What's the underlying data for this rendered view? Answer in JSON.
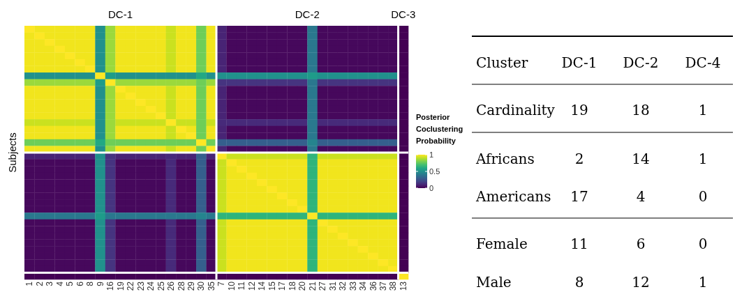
{
  "chart_data": [
    {
      "type": "heatmap",
      "ylabel": "Subjects",
      "categories": [
        "1",
        "2",
        "3",
        "4",
        "5",
        "6",
        "8",
        "9",
        "16",
        "19",
        "22",
        "23",
        "24",
        "25",
        "26",
        "28",
        "29",
        "30",
        "35",
        "7",
        "10",
        "11",
        "12",
        "14",
        "15",
        "17",
        "18",
        "20",
        "21",
        "27",
        "31",
        "32",
        "33",
        "34",
        "36",
        "37",
        "38",
        "13"
      ],
      "y_categories": [
        null,
        null,
        null,
        null,
        null,
        null,
        null,
        null,
        null,
        null,
        null,
        null,
        null,
        null,
        null,
        null,
        null,
        null,
        null,
        null,
        null,
        null,
        null,
        null,
        null,
        null,
        null,
        null,
        null,
        null,
        null,
        null,
        null,
        null,
        null,
        null,
        null,
        null
      ],
      "annotations": [
        "DC-1",
        "DC-2",
        "DC-3"
      ],
      "clim": [
        0,
        1
      ],
      "cticks": [
        0,
        0.5,
        1
      ],
      "clabel": "Posterior Coclustering Probability",
      "tick_labels": "x",
      "cells": [
        [
          1,
          0.98,
          0.98,
          0.98,
          0.98,
          0.98,
          0.98,
          0.5,
          0.85,
          0.98,
          0.98,
          0.98,
          0.98,
          0.98,
          0.92,
          0.98,
          0.98,
          0.78,
          0.98,
          0.1,
          0.02,
          0.02,
          0.02,
          0.02,
          0.02,
          0.02,
          0.02,
          0.02,
          0.4,
          0.02,
          0.02,
          0.02,
          0.02,
          0.02,
          0.02,
          0.02,
          0.02,
          0
        ],
        [
          0.98,
          1,
          0.98,
          0.98,
          0.98,
          0.98,
          0.98,
          0.5,
          0.85,
          0.98,
          0.98,
          0.98,
          0.98,
          0.98,
          0.92,
          0.98,
          0.98,
          0.78,
          0.98,
          0.1,
          0.02,
          0.02,
          0.02,
          0.02,
          0.02,
          0.02,
          0.02,
          0.02,
          0.4,
          0.02,
          0.02,
          0.02,
          0.02,
          0.02,
          0.02,
          0.02,
          0.02,
          0
        ],
        [
          0.98,
          0.98,
          1,
          0.98,
          0.98,
          0.98,
          0.98,
          0.5,
          0.85,
          0.98,
          0.98,
          0.98,
          0.98,
          0.98,
          0.92,
          0.98,
          0.98,
          0.78,
          0.98,
          0.1,
          0.02,
          0.02,
          0.02,
          0.02,
          0.02,
          0.02,
          0.02,
          0.02,
          0.4,
          0.02,
          0.02,
          0.02,
          0.02,
          0.02,
          0.02,
          0.02,
          0.02,
          0
        ],
        [
          0.98,
          0.98,
          0.98,
          1,
          0.98,
          0.98,
          0.98,
          0.5,
          0.85,
          0.98,
          0.98,
          0.98,
          0.98,
          0.98,
          0.92,
          0.98,
          0.98,
          0.78,
          0.98,
          0.1,
          0.02,
          0.02,
          0.02,
          0.02,
          0.02,
          0.02,
          0.02,
          0.02,
          0.4,
          0.02,
          0.02,
          0.02,
          0.02,
          0.02,
          0.02,
          0.02,
          0.02,
          0
        ],
        [
          0.98,
          0.98,
          0.98,
          0.98,
          1,
          0.98,
          0.98,
          0.5,
          0.85,
          0.98,
          0.98,
          0.98,
          0.98,
          0.98,
          0.92,
          0.98,
          0.98,
          0.78,
          0.98,
          0.1,
          0.02,
          0.02,
          0.02,
          0.02,
          0.02,
          0.02,
          0.02,
          0.02,
          0.4,
          0.02,
          0.02,
          0.02,
          0.02,
          0.02,
          0.02,
          0.02,
          0.02,
          0
        ],
        [
          0.98,
          0.98,
          0.98,
          0.98,
          0.98,
          1,
          0.98,
          0.5,
          0.85,
          0.98,
          0.98,
          0.98,
          0.98,
          0.98,
          0.92,
          0.98,
          0.98,
          0.78,
          0.98,
          0.1,
          0.02,
          0.02,
          0.02,
          0.02,
          0.02,
          0.02,
          0.02,
          0.02,
          0.4,
          0.02,
          0.02,
          0.02,
          0.02,
          0.02,
          0.02,
          0.02,
          0.02,
          0
        ],
        [
          0.98,
          0.98,
          0.98,
          0.98,
          0.98,
          0.98,
          1,
          0.5,
          0.85,
          0.98,
          0.98,
          0.98,
          0.98,
          0.98,
          0.92,
          0.98,
          0.98,
          0.78,
          0.98,
          0.1,
          0.02,
          0.02,
          0.02,
          0.02,
          0.02,
          0.02,
          0.02,
          0.02,
          0.4,
          0.02,
          0.02,
          0.02,
          0.02,
          0.02,
          0.02,
          0.02,
          0.02,
          0
        ],
        [
          0.5,
          0.5,
          0.5,
          0.5,
          0.5,
          0.5,
          0.5,
          1,
          0.55,
          0.5,
          0.5,
          0.5,
          0.5,
          0.5,
          0.5,
          0.5,
          0.5,
          0.6,
          0.5,
          0.5,
          0.5,
          0.5,
          0.5,
          0.5,
          0.5,
          0.5,
          0.5,
          0.5,
          0.55,
          0.5,
          0.5,
          0.5,
          0.5,
          0.5,
          0.5,
          0.5,
          0.5,
          0
        ],
        [
          0.85,
          0.85,
          0.85,
          0.85,
          0.85,
          0.85,
          0.85,
          0.55,
          1,
          0.85,
          0.85,
          0.85,
          0.85,
          0.85,
          0.85,
          0.85,
          0.85,
          0.78,
          0.85,
          0.15,
          0.15,
          0.15,
          0.15,
          0.15,
          0.15,
          0.15,
          0.15,
          0.15,
          0.4,
          0.15,
          0.15,
          0.15,
          0.15,
          0.15,
          0.15,
          0.15,
          0.15,
          0
        ],
        [
          0.98,
          0.98,
          0.98,
          0.98,
          0.98,
          0.98,
          0.98,
          0.5,
          0.85,
          1,
          0.98,
          0.98,
          0.98,
          0.98,
          0.92,
          0.98,
          0.98,
          0.78,
          0.98,
          0.1,
          0.02,
          0.02,
          0.02,
          0.02,
          0.02,
          0.02,
          0.02,
          0.02,
          0.4,
          0.02,
          0.02,
          0.02,
          0.02,
          0.02,
          0.02,
          0.02,
          0.02,
          0
        ],
        [
          0.98,
          0.98,
          0.98,
          0.98,
          0.98,
          0.98,
          0.98,
          0.5,
          0.85,
          0.98,
          1,
          0.98,
          0.98,
          0.98,
          0.92,
          0.98,
          0.98,
          0.78,
          0.98,
          0.1,
          0.02,
          0.02,
          0.02,
          0.02,
          0.02,
          0.02,
          0.02,
          0.02,
          0.4,
          0.02,
          0.02,
          0.02,
          0.02,
          0.02,
          0.02,
          0.02,
          0.02,
          0
        ],
        [
          0.98,
          0.98,
          0.98,
          0.98,
          0.98,
          0.98,
          0.98,
          0.5,
          0.85,
          0.98,
          0.98,
          1,
          0.98,
          0.98,
          0.92,
          0.98,
          0.98,
          0.78,
          0.98,
          0.1,
          0.02,
          0.02,
          0.02,
          0.02,
          0.02,
          0.02,
          0.02,
          0.02,
          0.4,
          0.02,
          0.02,
          0.02,
          0.02,
          0.02,
          0.02,
          0.02,
          0.02,
          0
        ],
        [
          0.98,
          0.98,
          0.98,
          0.98,
          0.98,
          0.98,
          0.98,
          0.5,
          0.85,
          0.98,
          0.98,
          0.98,
          1,
          0.98,
          0.92,
          0.98,
          0.98,
          0.78,
          0.98,
          0.1,
          0.02,
          0.02,
          0.02,
          0.02,
          0.02,
          0.02,
          0.02,
          0.02,
          0.4,
          0.02,
          0.02,
          0.02,
          0.02,
          0.02,
          0.02,
          0.02,
          0.02,
          0
        ],
        [
          0.98,
          0.98,
          0.98,
          0.98,
          0.98,
          0.98,
          0.98,
          0.5,
          0.85,
          0.98,
          0.98,
          0.98,
          0.98,
          1,
          0.92,
          0.98,
          0.98,
          0.78,
          0.98,
          0.1,
          0.02,
          0.02,
          0.02,
          0.02,
          0.02,
          0.02,
          0.02,
          0.02,
          0.4,
          0.02,
          0.02,
          0.02,
          0.02,
          0.02,
          0.02,
          0.02,
          0.02,
          0
        ],
        [
          0.92,
          0.92,
          0.92,
          0.92,
          0.92,
          0.92,
          0.92,
          0.5,
          0.85,
          0.92,
          0.92,
          0.92,
          0.92,
          0.92,
          1,
          0.92,
          0.92,
          0.78,
          0.92,
          0.12,
          0.12,
          0.12,
          0.12,
          0.12,
          0.12,
          0.12,
          0.12,
          0.12,
          0.4,
          0.12,
          0.12,
          0.12,
          0.12,
          0.12,
          0.12,
          0.12,
          0.12,
          0
        ],
        [
          0.98,
          0.98,
          0.98,
          0.98,
          0.98,
          0.98,
          0.98,
          0.5,
          0.85,
          0.98,
          0.98,
          0.98,
          0.98,
          0.98,
          0.92,
          1,
          0.98,
          0.78,
          0.98,
          0.1,
          0.02,
          0.02,
          0.02,
          0.02,
          0.02,
          0.02,
          0.02,
          0.02,
          0.4,
          0.02,
          0.02,
          0.02,
          0.02,
          0.02,
          0.02,
          0.02,
          0.02,
          0
        ],
        [
          0.98,
          0.98,
          0.98,
          0.98,
          0.98,
          0.98,
          0.98,
          0.5,
          0.85,
          0.98,
          0.98,
          0.98,
          0.98,
          0.98,
          0.92,
          0.98,
          1,
          0.78,
          0.98,
          0.1,
          0.02,
          0.02,
          0.02,
          0.02,
          0.02,
          0.02,
          0.02,
          0.02,
          0.4,
          0.02,
          0.02,
          0.02,
          0.02,
          0.02,
          0.02,
          0.02,
          0.02,
          0
        ],
        [
          0.78,
          0.78,
          0.78,
          0.78,
          0.78,
          0.78,
          0.78,
          0.6,
          0.78,
          0.78,
          0.78,
          0.78,
          0.78,
          0.78,
          0.78,
          0.78,
          0.78,
          1,
          0.78,
          0.3,
          0.3,
          0.3,
          0.3,
          0.3,
          0.3,
          0.3,
          0.3,
          0.3,
          0.45,
          0.3,
          0.3,
          0.3,
          0.3,
          0.3,
          0.3,
          0.3,
          0.3,
          0
        ],
        [
          0.98,
          0.98,
          0.98,
          0.98,
          0.98,
          0.98,
          0.98,
          0.5,
          0.85,
          0.98,
          0.98,
          0.98,
          0.98,
          0.98,
          0.92,
          0.98,
          0.98,
          0.78,
          1,
          0.1,
          0.02,
          0.02,
          0.02,
          0.02,
          0.02,
          0.02,
          0.02,
          0.02,
          0.4,
          0.02,
          0.02,
          0.02,
          0.02,
          0.02,
          0.02,
          0.02,
          0.02,
          0
        ],
        [
          0.1,
          0.1,
          0.1,
          0.1,
          0.1,
          0.1,
          0.1,
          0.5,
          0.15,
          0.1,
          0.1,
          0.1,
          0.1,
          0.1,
          0.12,
          0.1,
          0.1,
          0.3,
          0.1,
          1,
          0.92,
          0.92,
          0.92,
          0.92,
          0.92,
          0.92,
          0.92,
          0.92,
          0.65,
          0.92,
          0.92,
          0.92,
          0.92,
          0.92,
          0.92,
          0.92,
          0.92,
          0
        ],
        [
          0.02,
          0.02,
          0.02,
          0.02,
          0.02,
          0.02,
          0.02,
          0.5,
          0.15,
          0.02,
          0.02,
          0.02,
          0.02,
          0.02,
          0.12,
          0.02,
          0.02,
          0.3,
          0.02,
          0.92,
          1,
          0.98,
          0.98,
          0.98,
          0.98,
          0.98,
          0.98,
          0.98,
          0.65,
          0.98,
          0.98,
          0.98,
          0.98,
          0.98,
          0.98,
          0.98,
          0.98,
          0
        ],
        [
          0.02,
          0.02,
          0.02,
          0.02,
          0.02,
          0.02,
          0.02,
          0.5,
          0.15,
          0.02,
          0.02,
          0.02,
          0.02,
          0.02,
          0.12,
          0.02,
          0.02,
          0.3,
          0.02,
          0.92,
          0.98,
          1,
          0.98,
          0.98,
          0.98,
          0.98,
          0.98,
          0.98,
          0.65,
          0.98,
          0.98,
          0.98,
          0.98,
          0.98,
          0.98,
          0.98,
          0.98,
          0
        ],
        [
          0.02,
          0.02,
          0.02,
          0.02,
          0.02,
          0.02,
          0.02,
          0.5,
          0.15,
          0.02,
          0.02,
          0.02,
          0.02,
          0.02,
          0.12,
          0.02,
          0.02,
          0.3,
          0.02,
          0.92,
          0.98,
          0.98,
          1,
          0.98,
          0.98,
          0.98,
          0.98,
          0.98,
          0.65,
          0.98,
          0.98,
          0.98,
          0.98,
          0.98,
          0.98,
          0.98,
          0.98,
          0
        ],
        [
          0.02,
          0.02,
          0.02,
          0.02,
          0.02,
          0.02,
          0.02,
          0.5,
          0.15,
          0.02,
          0.02,
          0.02,
          0.02,
          0.02,
          0.12,
          0.02,
          0.02,
          0.3,
          0.02,
          0.92,
          0.98,
          0.98,
          0.98,
          1,
          0.98,
          0.98,
          0.98,
          0.98,
          0.65,
          0.98,
          0.98,
          0.98,
          0.98,
          0.98,
          0.98,
          0.98,
          0.98,
          0
        ],
        [
          0.02,
          0.02,
          0.02,
          0.02,
          0.02,
          0.02,
          0.02,
          0.5,
          0.15,
          0.02,
          0.02,
          0.02,
          0.02,
          0.02,
          0.12,
          0.02,
          0.02,
          0.3,
          0.02,
          0.92,
          0.98,
          0.98,
          0.98,
          0.98,
          1,
          0.98,
          0.98,
          0.98,
          0.65,
          0.98,
          0.98,
          0.98,
          0.98,
          0.98,
          0.98,
          0.98,
          0.98,
          0
        ],
        [
          0.02,
          0.02,
          0.02,
          0.02,
          0.02,
          0.02,
          0.02,
          0.5,
          0.15,
          0.02,
          0.02,
          0.02,
          0.02,
          0.02,
          0.12,
          0.02,
          0.02,
          0.3,
          0.02,
          0.92,
          0.98,
          0.98,
          0.98,
          0.98,
          0.98,
          1,
          0.98,
          0.98,
          0.65,
          0.98,
          0.98,
          0.98,
          0.98,
          0.98,
          0.98,
          0.98,
          0.98,
          0
        ],
        [
          0.02,
          0.02,
          0.02,
          0.02,
          0.02,
          0.02,
          0.02,
          0.5,
          0.15,
          0.02,
          0.02,
          0.02,
          0.02,
          0.02,
          0.12,
          0.02,
          0.02,
          0.3,
          0.02,
          0.92,
          0.98,
          0.98,
          0.98,
          0.98,
          0.98,
          0.98,
          1,
          0.98,
          0.65,
          0.98,
          0.98,
          0.98,
          0.98,
          0.98,
          0.98,
          0.98,
          0.98,
          0
        ],
        [
          0.02,
          0.02,
          0.02,
          0.02,
          0.02,
          0.02,
          0.02,
          0.5,
          0.15,
          0.02,
          0.02,
          0.02,
          0.02,
          0.02,
          0.12,
          0.02,
          0.02,
          0.3,
          0.02,
          0.92,
          0.98,
          0.98,
          0.98,
          0.98,
          0.98,
          0.98,
          0.98,
          1,
          0.65,
          0.98,
          0.98,
          0.98,
          0.98,
          0.98,
          0.98,
          0.98,
          0.98,
          0
        ],
        [
          0.4,
          0.4,
          0.4,
          0.4,
          0.4,
          0.4,
          0.4,
          0.55,
          0.4,
          0.4,
          0.4,
          0.4,
          0.4,
          0.4,
          0.4,
          0.4,
          0.4,
          0.45,
          0.4,
          0.65,
          0.65,
          0.65,
          0.65,
          0.65,
          0.65,
          0.65,
          0.65,
          0.65,
          1,
          0.65,
          0.65,
          0.65,
          0.65,
          0.65,
          0.65,
          0.65,
          0.65,
          0
        ],
        [
          0.02,
          0.02,
          0.02,
          0.02,
          0.02,
          0.02,
          0.02,
          0.5,
          0.15,
          0.02,
          0.02,
          0.02,
          0.02,
          0.02,
          0.12,
          0.02,
          0.02,
          0.3,
          0.02,
          0.92,
          0.98,
          0.98,
          0.98,
          0.98,
          0.98,
          0.98,
          0.98,
          0.98,
          0.65,
          1,
          0.98,
          0.98,
          0.98,
          0.98,
          0.98,
          0.98,
          0.98,
          0
        ],
        [
          0.02,
          0.02,
          0.02,
          0.02,
          0.02,
          0.02,
          0.02,
          0.5,
          0.15,
          0.02,
          0.02,
          0.02,
          0.02,
          0.02,
          0.12,
          0.02,
          0.02,
          0.3,
          0.02,
          0.92,
          0.98,
          0.98,
          0.98,
          0.98,
          0.98,
          0.98,
          0.98,
          0.98,
          0.65,
          0.98,
          1,
          0.98,
          0.98,
          0.98,
          0.98,
          0.98,
          0.98,
          0
        ],
        [
          0.02,
          0.02,
          0.02,
          0.02,
          0.02,
          0.02,
          0.02,
          0.5,
          0.15,
          0.02,
          0.02,
          0.02,
          0.02,
          0.02,
          0.12,
          0.02,
          0.02,
          0.3,
          0.02,
          0.92,
          0.98,
          0.98,
          0.98,
          0.98,
          0.98,
          0.98,
          0.98,
          0.98,
          0.65,
          0.98,
          0.98,
          1,
          0.98,
          0.98,
          0.98,
          0.98,
          0.98,
          0
        ],
        [
          0.02,
          0.02,
          0.02,
          0.02,
          0.02,
          0.02,
          0.02,
          0.5,
          0.15,
          0.02,
          0.02,
          0.02,
          0.02,
          0.02,
          0.12,
          0.02,
          0.02,
          0.3,
          0.02,
          0.92,
          0.98,
          0.98,
          0.98,
          0.98,
          0.98,
          0.98,
          0.98,
          0.98,
          0.65,
          0.98,
          0.98,
          0.98,
          1,
          0.98,
          0.98,
          0.98,
          0.98,
          0
        ],
        [
          0.02,
          0.02,
          0.02,
          0.02,
          0.02,
          0.02,
          0.02,
          0.5,
          0.15,
          0.02,
          0.02,
          0.02,
          0.02,
          0.02,
          0.12,
          0.02,
          0.02,
          0.3,
          0.02,
          0.92,
          0.98,
          0.98,
          0.98,
          0.98,
          0.98,
          0.98,
          0.98,
          0.98,
          0.65,
          0.98,
          0.98,
          0.98,
          0.98,
          1,
          0.98,
          0.98,
          0.98,
          0
        ],
        [
          0.02,
          0.02,
          0.02,
          0.02,
          0.02,
          0.02,
          0.02,
          0.5,
          0.15,
          0.02,
          0.02,
          0.02,
          0.02,
          0.02,
          0.12,
          0.02,
          0.02,
          0.3,
          0.02,
          0.92,
          0.98,
          0.98,
          0.98,
          0.98,
          0.98,
          0.98,
          0.98,
          0.98,
          0.65,
          0.98,
          0.98,
          0.98,
          0.98,
          0.98,
          1,
          0.98,
          0.98,
          0
        ],
        [
          0.02,
          0.02,
          0.02,
          0.02,
          0.02,
          0.02,
          0.02,
          0.5,
          0.15,
          0.02,
          0.02,
          0.02,
          0.02,
          0.02,
          0.12,
          0.02,
          0.02,
          0.3,
          0.02,
          0.92,
          0.98,
          0.98,
          0.98,
          0.98,
          0.98,
          0.98,
          0.98,
          0.98,
          0.65,
          0.98,
          0.98,
          0.98,
          0.98,
          0.98,
          0.98,
          1,
          0.98,
          0
        ],
        [
          0.02,
          0.02,
          0.02,
          0.02,
          0.02,
          0.02,
          0.02,
          0.5,
          0.15,
          0.02,
          0.02,
          0.02,
          0.02,
          0.02,
          0.12,
          0.02,
          0.02,
          0.3,
          0.02,
          0.92,
          0.98,
          0.98,
          0.98,
          0.98,
          0.98,
          0.98,
          0.98,
          0.98,
          0.65,
          0.98,
          0.98,
          0.98,
          0.98,
          0.98,
          0.98,
          0.98,
          1,
          0
        ],
        [
          0,
          0,
          0,
          0,
          0,
          0,
          0,
          0,
          0,
          0,
          0,
          0,
          0,
          0,
          0,
          0,
          0,
          0,
          0,
          0,
          0,
          0,
          0,
          0,
          0,
          0,
          0,
          0,
          0,
          0,
          0,
          0,
          0,
          0,
          0,
          0,
          0,
          1
        ]
      ]
    },
    {
      "type": "other",
      "title": "Cluster",
      "categories": [
        "Cardinality",
        "Africans",
        "Americans",
        "Female",
        "Male"
      ],
      "data_labels": true,
      "series": [
        {
          "name": "DC-1",
          "values": [
            19,
            2,
            17,
            11,
            8
          ]
        },
        {
          "name": "DC-2",
          "values": [
            18,
            14,
            4,
            6,
            12
          ]
        },
        {
          "name": "DC-4",
          "values": [
            1,
            1,
            0,
            0,
            1
          ]
        }
      ]
    }
  ]
}
